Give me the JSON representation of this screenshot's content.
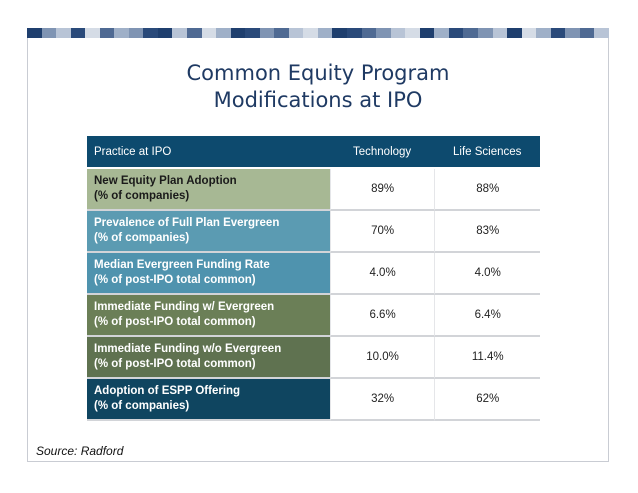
{
  "title_lines": [
    "Common Equity Program",
    "Modifications at IPO"
  ],
  "table": {
    "headers": [
      "Practice at IPO",
      "Technology",
      "Life Sciences"
    ],
    "rows": [
      {
        "label1": "New Equity Plan Adoption",
        "label2": "(% of companies)",
        "tech": "89%",
        "life": "88%",
        "color": "#a7b894"
      },
      {
        "label1": "Prevalence of Full Plan Evergreen",
        "label2": "(% of companies)",
        "tech": "70%",
        "life": "83%",
        "color": "#5b9bb2"
      },
      {
        "label1": "Median Evergreen Funding Rate",
        "label2": "(% of post-IPO total common)",
        "tech": "4.0%",
        "life": "4.0%",
        "color": "#4f93ae"
      },
      {
        "label1": "Immediate Funding w/ Evergreen",
        "label2": "(% of post-IPO total common)",
        "tech": "6.6%",
        "life": "6.4%",
        "color": "#6b7f57"
      },
      {
        "label1": "Immediate Funding w/o Evergreen",
        "label2": "(% of post-IPO total common)",
        "tech": "10.0%",
        "life": "11.4%",
        "color": "#5f7250"
      },
      {
        "label1": "Adoption of ESPP Offering",
        "label2": "(% of companies)",
        "tech": "32%",
        "life": "62%",
        "color": "#0f4560"
      }
    ]
  },
  "source": "Source: Radford",
  "colors": {
    "title": "#1f3a63",
    "header_bg": "#0d4a6e",
    "band": [
      "#1f3f6e",
      "#7f94b3",
      "#b8c4d6",
      "#2a4a7a",
      "#d5dce6",
      "#4f6a93",
      "#9fb0c8"
    ]
  }
}
